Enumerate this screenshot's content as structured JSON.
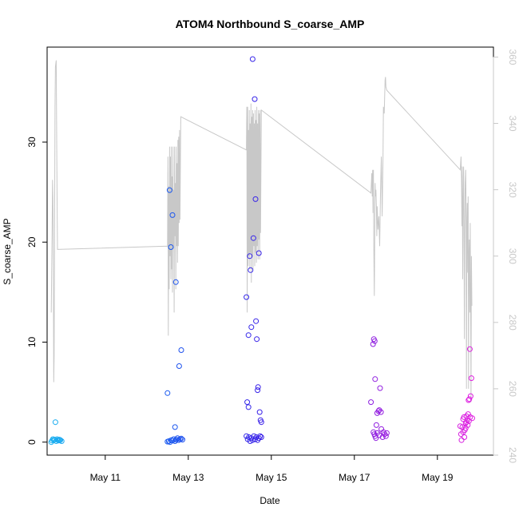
{
  "chart_data": {
    "type": "scatter",
    "title": "ATOM4 Northbound S_coarse_AMP",
    "xlabel": "Date",
    "ylabel": "S_coarse_AMP",
    "xlim": [
      9.6,
      20.35
    ],
    "ylim": [
      -1.3,
      39.5
    ],
    "y2lim": [
      240,
      363
    ],
    "x_ticks": [
      {
        "value": 11,
        "label": "May 11"
      },
      {
        "value": 13,
        "label": "May 13"
      },
      {
        "value": 15,
        "label": "May 15"
      },
      {
        "value": 17,
        "label": "May 17"
      },
      {
        "value": 19,
        "label": "May 19"
      }
    ],
    "y_ticks": [
      0,
      10,
      20,
      30
    ],
    "y2_ticks": [
      240,
      260,
      280,
      300,
      320,
      340,
      360
    ],
    "colors": {
      "line": "#c8c8c8",
      "right_axis": "#c8c8c8",
      "points_gradient": [
        "#1ab0f0",
        "#1560f0",
        "#3a20e8",
        "#8a20e0",
        "#e020e0"
      ]
    },
    "points": [
      [
        9.7,
        0.0
      ],
      [
        9.72,
        0.15
      ],
      [
        9.74,
        0.3
      ],
      [
        9.76,
        0.2
      ],
      [
        9.78,
        0.25
      ],
      [
        9.8,
        2.0
      ],
      [
        9.82,
        0.1
      ],
      [
        9.84,
        0.3
      ],
      [
        9.86,
        0.2
      ],
      [
        9.88,
        0.15
      ],
      [
        9.9,
        0.25
      ],
      [
        9.92,
        0.2
      ],
      [
        9.95,
        0.1
      ],
      [
        12.5,
        4.9
      ],
      [
        12.55,
        25.2
      ],
      [
        12.58,
        19.5
      ],
      [
        12.62,
        22.7
      ],
      [
        12.68,
        1.5
      ],
      [
        12.7,
        16.0
      ],
      [
        12.78,
        7.6
      ],
      [
        12.83,
        9.2
      ],
      [
        12.5,
        0.05
      ],
      [
        12.53,
        0.1
      ],
      [
        12.56,
        0.0
      ],
      [
        12.59,
        0.2
      ],
      [
        12.62,
        0.15
      ],
      [
        12.65,
        0.3
      ],
      [
        12.68,
        0.1
      ],
      [
        12.71,
        0.25
      ],
      [
        12.74,
        0.4
      ],
      [
        12.77,
        0.2
      ],
      [
        12.8,
        0.3
      ],
      [
        12.83,
        0.35
      ],
      [
        12.86,
        0.25
      ],
      [
        14.4,
        14.5
      ],
      [
        14.42,
        4.0
      ],
      [
        14.45,
        10.7
      ],
      [
        14.48,
        18.6
      ],
      [
        14.5,
        17.2
      ],
      [
        14.52,
        11.5
      ],
      [
        14.55,
        38.3
      ],
      [
        14.57,
        20.4
      ],
      [
        14.6,
        34.3
      ],
      [
        14.62,
        24.3
      ],
      [
        14.63,
        12.1
      ],
      [
        14.65,
        10.3
      ],
      [
        14.67,
        5.2
      ],
      [
        14.68,
        5.5
      ],
      [
        14.7,
        18.9
      ],
      [
        14.72,
        3.0
      ],
      [
        14.74,
        2.2
      ],
      [
        14.76,
        2.0
      ],
      [
        14.45,
        3.5
      ],
      [
        14.4,
        0.6
      ],
      [
        14.43,
        0.3
      ],
      [
        14.46,
        0.5
      ],
      [
        14.49,
        0.1
      ],
      [
        14.52,
        0.4
      ],
      [
        14.55,
        0.2
      ],
      [
        14.58,
        0.6
      ],
      [
        14.61,
        0.3
      ],
      [
        14.64,
        0.5
      ],
      [
        14.67,
        0.2
      ],
      [
        14.7,
        0.4
      ],
      [
        14.73,
        0.6
      ],
      [
        14.76,
        0.5
      ],
      [
        17.4,
        4.0
      ],
      [
        17.45,
        9.8
      ],
      [
        17.47,
        10.3
      ],
      [
        17.49,
        10.1
      ],
      [
        17.5,
        6.3
      ],
      [
        17.53,
        1.7
      ],
      [
        17.55,
        2.9
      ],
      [
        17.58,
        3.1
      ],
      [
        17.6,
        3.2
      ],
      [
        17.62,
        5.4
      ],
      [
        17.64,
        3.0
      ],
      [
        17.46,
        1.0
      ],
      [
        17.48,
        0.8
      ],
      [
        17.5,
        0.6
      ],
      [
        17.52,
        0.4
      ],
      [
        17.55,
        0.9
      ],
      [
        17.6,
        0.7
      ],
      [
        17.65,
        1.3
      ],
      [
        17.68,
        0.5
      ],
      [
        17.7,
        1.0
      ],
      [
        17.73,
        0.8
      ],
      [
        17.76,
        0.6
      ],
      [
        17.78,
        0.9
      ],
      [
        19.55,
        1.6
      ],
      [
        19.57,
        0.8
      ],
      [
        19.58,
        0.2
      ],
      [
        19.6,
        1.5
      ],
      [
        19.62,
        2.3
      ],
      [
        19.64,
        2.5
      ],
      [
        19.66,
        1.2
      ],
      [
        19.68,
        1.9
      ],
      [
        19.7,
        2.6
      ],
      [
        19.72,
        2.2
      ],
      [
        19.74,
        2.8
      ],
      [
        19.75,
        4.2
      ],
      [
        19.77,
        4.3
      ],
      [
        19.78,
        9.3
      ],
      [
        19.8,
        4.6
      ],
      [
        19.82,
        6.4
      ],
      [
        19.84,
        2.4
      ],
      [
        19.62,
        1.0
      ],
      [
        19.65,
        0.5
      ],
      [
        19.68,
        1.4
      ],
      [
        19.7,
        2.0
      ],
      [
        19.73,
        1.7
      ],
      [
        19.76,
        2.1
      ],
      [
        19.79,
        2.5
      ]
    ],
    "line": [
      [
        9.7,
        283
      ],
      [
        9.72,
        306
      ],
      [
        9.73,
        323
      ],
      [
        9.74,
        317
      ],
      [
        9.75,
        296
      ],
      [
        9.76,
        262
      ],
      [
        9.77,
        270
      ],
      [
        9.78,
        310
      ],
      [
        9.79,
        345
      ],
      [
        9.8,
        357
      ],
      [
        9.82,
        359
      ],
      [
        9.83,
        335
      ],
      [
        9.84,
        317
      ],
      [
        9.85,
        302
      ],
      [
        12.5,
        303
      ],
      [
        12.51,
        330
      ],
      [
        12.52,
        276
      ],
      [
        12.53,
        321
      ],
      [
        12.54,
        290
      ],
      [
        12.55,
        333
      ],
      [
        12.56,
        300
      ],
      [
        12.57,
        330
      ],
      [
        12.58,
        293
      ],
      [
        12.59,
        333
      ],
      [
        12.6,
        296
      ],
      [
        12.61,
        324
      ],
      [
        12.62,
        289
      ],
      [
        12.63,
        333
      ],
      [
        12.64,
        303
      ],
      [
        12.65,
        320
      ],
      [
        12.66,
        283
      ],
      [
        12.67,
        333
      ],
      [
        12.68,
        306
      ],
      [
        12.69,
        322
      ],
      [
        12.7,
        290
      ],
      [
        12.71,
        333
      ],
      [
        12.72,
        303
      ],
      [
        12.73,
        328
      ],
      [
        12.74,
        298
      ],
      [
        12.75,
        335
      ],
      [
        12.76,
        303
      ],
      [
        12.77,
        336
      ],
      [
        12.78,
        310
      ],
      [
        12.79,
        338
      ],
      [
        12.8,
        311
      ],
      [
        12.82,
        342
      ],
      [
        14.4,
        332
      ],
      [
        14.41,
        345
      ],
      [
        14.42,
        283
      ],
      [
        14.43,
        345
      ],
      [
        14.44,
        297
      ],
      [
        14.45,
        338
      ],
      [
        14.46,
        300
      ],
      [
        14.47,
        344
      ],
      [
        14.48,
        296
      ],
      [
        14.49,
        340
      ],
      [
        14.5,
        301
      ],
      [
        14.51,
        346
      ],
      [
        14.52,
        292
      ],
      [
        14.53,
        342
      ],
      [
        14.54,
        300
      ],
      [
        14.55,
        344
      ],
      [
        14.56,
        296
      ],
      [
        14.57,
        343
      ],
      [
        14.58,
        303
      ],
      [
        14.59,
        340
      ],
      [
        14.6,
        297
      ],
      [
        14.61,
        344
      ],
      [
        14.62,
        301
      ],
      [
        14.63,
        341
      ],
      [
        14.64,
        298
      ],
      [
        14.65,
        345
      ],
      [
        14.66,
        303
      ],
      [
        14.67,
        340
      ],
      [
        14.68,
        299
      ],
      [
        14.69,
        344
      ],
      [
        14.7,
        305
      ],
      [
        14.71,
        343
      ],
      [
        14.72,
        299
      ],
      [
        14.73,
        344
      ],
      [
        14.74,
        307
      ],
      [
        14.76,
        344
      ],
      [
        17.4,
        319
      ],
      [
        17.42,
        325
      ],
      [
        17.43,
        318
      ],
      [
        17.44,
        326
      ],
      [
        17.45,
        313
      ],
      [
        17.46,
        326
      ],
      [
        17.47,
        302
      ],
      [
        17.48,
        288
      ],
      [
        17.49,
        305
      ],
      [
        17.5,
        322
      ],
      [
        17.51,
        318
      ],
      [
        17.52,
        320
      ],
      [
        17.53,
        315
      ],
      [
        17.54,
        306
      ],
      [
        17.55,
        315
      ],
      [
        17.57,
        308
      ],
      [
        17.59,
        312
      ],
      [
        17.61,
        303
      ],
      [
        17.63,
        320
      ],
      [
        17.65,
        330
      ],
      [
        17.67,
        312
      ],
      [
        17.69,
        330
      ],
      [
        17.7,
        345
      ],
      [
        17.72,
        343
      ],
      [
        17.74,
        353
      ],
      [
        17.75,
        354
      ],
      [
        17.76,
        351
      ],
      [
        17.78,
        350
      ],
      [
        19.55,
        326
      ],
      [
        19.57,
        330
      ],
      [
        19.58,
        323
      ],
      [
        19.59,
        309
      ],
      [
        19.6,
        327
      ],
      [
        19.61,
        293
      ],
      [
        19.62,
        315
      ],
      [
        19.63,
        327
      ],
      [
        19.64,
        310
      ],
      [
        19.65,
        275
      ],
      [
        19.66,
        305
      ],
      [
        19.67,
        322
      ],
      [
        19.68,
        326
      ],
      [
        19.69,
        316
      ],
      [
        19.7,
        260
      ],
      [
        19.71,
        310
      ],
      [
        19.72,
        316
      ],
      [
        19.73,
        295
      ],
      [
        19.74,
        318
      ],
      [
        19.75,
        260
      ],
      [
        19.76,
        300
      ],
      [
        19.77,
        305
      ],
      [
        19.78,
        283
      ],
      [
        19.79,
        310
      ],
      [
        19.8,
        287
      ],
      [
        19.81,
        256
      ],
      [
        19.82,
        300
      ],
      [
        19.83,
        285
      ]
    ]
  }
}
